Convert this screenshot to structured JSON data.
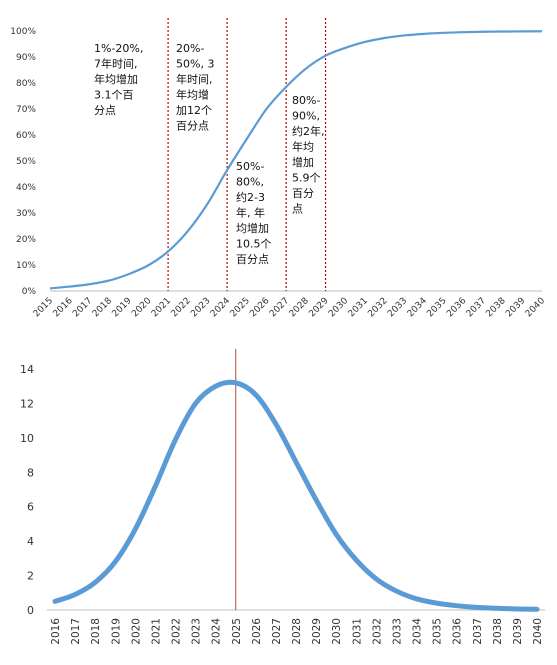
{
  "colors": {
    "line": "#5b9bd5",
    "divider": "#c00000",
    "peak_line": "#b04a3a",
    "grid": "#d9d9d9",
    "axis": "#bfbfbf"
  },
  "chart_data": [
    {
      "type": "line",
      "title": "",
      "xlabel": "",
      "ylabel": "",
      "x": [
        "2015",
        "2016",
        "2017",
        "2018",
        "2019",
        "2020",
        "2021",
        "2022",
        "2023",
        "2024",
        "2025",
        "2026",
        "2027",
        "2028",
        "2029",
        "2030",
        "2031",
        "2032",
        "2033",
        "2034",
        "2035",
        "2036",
        "2037",
        "2038",
        "2039",
        "2040"
      ],
      "y_tick_labels": [
        "0%",
        "10%",
        "20%",
        "30%",
        "40%",
        "50%",
        "60%",
        "70%",
        "80%",
        "90%",
        "100%"
      ],
      "ylim": [
        0,
        100
      ],
      "grid": false,
      "series": [
        {
          "values": [
            1,
            1.7,
            2.6,
            4,
            6.5,
            9.9,
            15.2,
            23,
            33.5,
            46.5,
            58.5,
            70,
            78.5,
            85.5,
            90.5,
            93.5,
            95.8,
            97.3,
            98.3,
            98.9,
            99.3,
            99.55,
            99.7,
            99.8,
            99.85,
            99.9
          ]
        }
      ],
      "dividers": [
        {
          "x": "2021"
        },
        {
          "x": "2024"
        },
        {
          "x": "2027"
        },
        {
          "x": "2029"
        }
      ],
      "annotations": [
        {
          "anchor": "2015-2021",
          "lines": [
            "1%-20%,",
            "7年时间,",
            "年均增加",
            "3.1个百",
            "分点"
          ]
        },
        {
          "anchor": "2021-2024",
          "lines": [
            "20%-",
            "50%, 3",
            "年时间,",
            "年均增",
            "加12个",
            "百分点"
          ]
        },
        {
          "anchor": "2024-2027",
          "lines": [
            "50%-",
            "80%,",
            "约2-3",
            "年, 年",
            "均增加",
            "10.5个",
            "百分点"
          ]
        },
        {
          "anchor": "2027-2029",
          "lines": [
            "80%-",
            "90%,",
            "约2年,",
            "年均",
            "增加",
            "5.9个",
            "百分",
            "点"
          ]
        }
      ]
    },
    {
      "type": "line",
      "title": "",
      "xlabel": "",
      "ylabel": "",
      "x": [
        "2016",
        "2017",
        "2018",
        "2019",
        "2020",
        "2021",
        "2022",
        "2023",
        "2024",
        "2025",
        "2026",
        "2027",
        "2028",
        "2029",
        "2030",
        "2031",
        "2032",
        "2033",
        "2034",
        "2035",
        "2036",
        "2037",
        "2038",
        "2039",
        "2040"
      ],
      "y_tick_labels": [
        "0",
        "2",
        "4",
        "6",
        "8",
        "10",
        "12",
        "14"
      ],
      "ylim": [
        0,
        14
      ],
      "grid": false,
      "series": [
        {
          "values": [
            0.5,
            0.9,
            1.6,
            2.8,
            4.7,
            7.2,
            9.9,
            12.0,
            13.0,
            13.2,
            12.5,
            10.8,
            8.6,
            6.4,
            4.4,
            2.9,
            1.8,
            1.1,
            0.65,
            0.4,
            0.25,
            0.15,
            0.1,
            0.06,
            0.04
          ]
        }
      ],
      "marker_line": {
        "x": "2025"
      }
    }
  ]
}
